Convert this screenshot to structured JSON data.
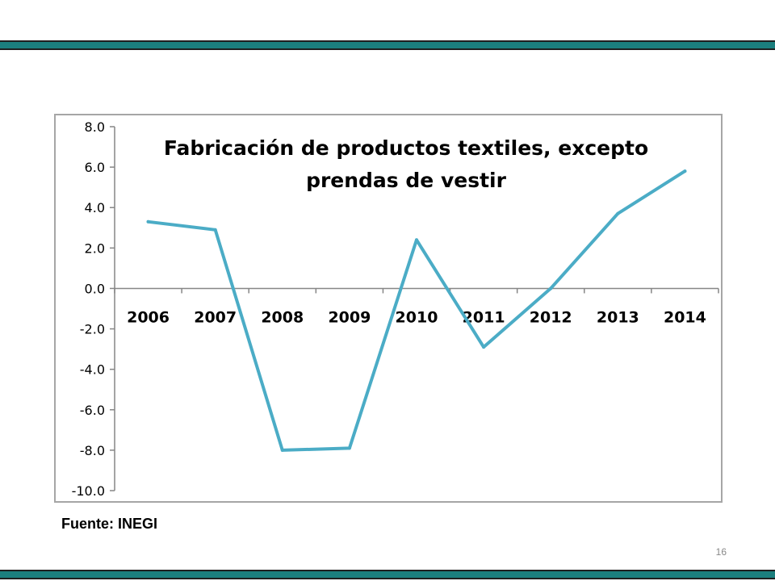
{
  "colors": {
    "band": "#1b7f7e",
    "line": "#4bacc6",
    "axis": "#868686",
    "frame": "#a6a6a6"
  },
  "chart_data": {
    "type": "line",
    "title_lines": [
      "Fabricación de productos textiles, excepto",
      "prendas de vestir"
    ],
    "categories": [
      "2006",
      "2007",
      "2008",
      "2009",
      "2010",
      "2011",
      "2012",
      "2013",
      "2014"
    ],
    "series": [
      {
        "values": [
          3.3,
          2.9,
          -8.0,
          -7.9,
          2.4,
          -2.9,
          0.0,
          3.7,
          5.8
        ]
      }
    ],
    "ylim": [
      -10.0,
      8.0
    ],
    "yticks": [
      "8.0",
      "6.0",
      "4.0",
      "2.0",
      "0.0",
      "-2.0",
      "-4.0",
      "-6.0",
      "-8.0",
      "-10.0"
    ],
    "xlabel": "",
    "ylabel": "",
    "legend": false,
    "grid": false
  },
  "footer": {
    "source": "Fuente: INEGI",
    "page_number": "16"
  }
}
